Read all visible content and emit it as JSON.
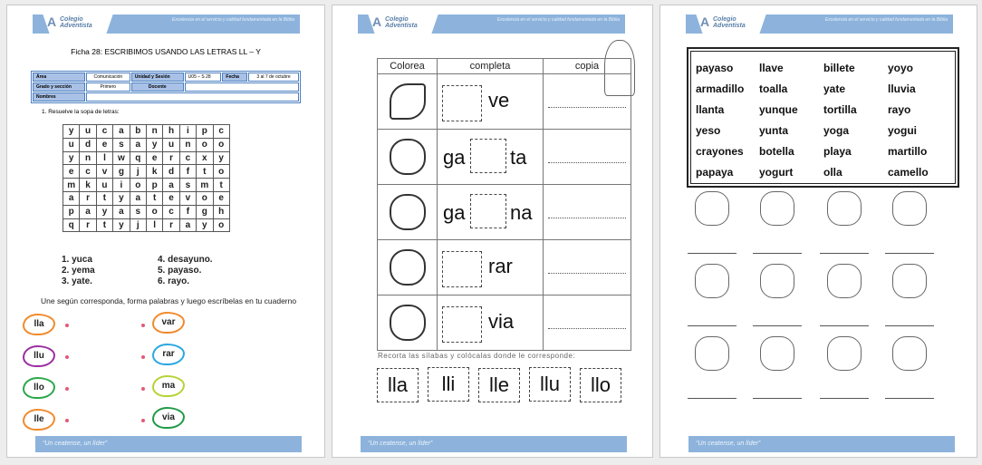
{
  "header": {
    "logo_line1": "Colegio",
    "logo_line2": "Adventista",
    "motto": "Excelencia en el servicio y calidad fundamentada en la Biblia"
  },
  "footer": "“Un ceatense, un líder”",
  "page1": {
    "title": "Ficha 28: ESCRIBIMOS USANDO LAS LETRAS LL – Y",
    "info": {
      "area_label": "Área",
      "area": "Comunicación",
      "unit_label": "Unidad y Sesión",
      "unit": "U05 – S 28",
      "date_label": "Fecha",
      "date": "3 al 7 de octubre",
      "grade_label": "Grado y sección",
      "grade": "Primero",
      "teacher_label": "Docente",
      "teacher": "",
      "name_label": "Nombres",
      "name": ""
    },
    "instruction1": "1.   Resuelve la sopa de letras:",
    "grid": [
      [
        "y",
        "u",
        "c",
        "a",
        "b",
        "n",
        "h",
        "i",
        "p",
        "c"
      ],
      [
        "u",
        "d",
        "e",
        "s",
        "a",
        "y",
        "u",
        "n",
        "o",
        "o"
      ],
      [
        "y",
        "n",
        "l",
        "w",
        "q",
        "e",
        "r",
        "c",
        "x",
        "y"
      ],
      [
        "e",
        "c",
        "v",
        "g",
        "j",
        "k",
        "d",
        "f",
        "t",
        "o"
      ],
      [
        "m",
        "k",
        "u",
        "i",
        "o",
        "p",
        "a",
        "s",
        "m",
        "t"
      ],
      [
        "a",
        "r",
        "t",
        "y",
        "a",
        "t",
        "e",
        "v",
        "o",
        "e"
      ],
      [
        "p",
        "a",
        "y",
        "a",
        "s",
        "o",
        "c",
        "f",
        "g",
        "h"
      ],
      [
        "q",
        "r",
        "t",
        "y",
        "j",
        "l",
        "r",
        "a",
        "y",
        "o"
      ]
    ],
    "words": [
      "1.   yuca",
      "2.   yema",
      "3.   yate.",
      "4.   desayuno.",
      "5.   payaso.",
      "6.   rayo."
    ],
    "instruction2": "Une según corresponda, forma palabras y luego escríbelas en tu cuaderno",
    "left_syllables": [
      {
        "t": "lla",
        "c": "#f08a2c"
      },
      {
        "t": "llu",
        "c": "#9b2fa0"
      },
      {
        "t": "llo",
        "c": "#2aa84a"
      },
      {
        "t": "lle",
        "c": "#f08a2c"
      }
    ],
    "right_syllables": [
      {
        "t": "var",
        "c": "#f08a2c"
      },
      {
        "t": "rar",
        "c": "#2aa7e0"
      },
      {
        "t": "ma",
        "c": "#b5d334"
      },
      {
        "t": "via",
        "c": "#1f9a46"
      }
    ]
  },
  "page2": {
    "headers": [
      "Colorea",
      "completa",
      "copia"
    ],
    "rows": [
      {
        "icon": "key-icon",
        "pre": "",
        "post": "ve"
      },
      {
        "icon": "cookie-icon",
        "pre": "ga",
        "post": "ta"
      },
      {
        "icon": "hen-icon",
        "pre": "ga",
        "post": "na"
      },
      {
        "icon": "crying-boy-icon",
        "pre": "",
        "post": "rar"
      },
      {
        "icon": "rain-cloud-icon",
        "pre": "",
        "post": "via"
      }
    ],
    "instruction": "Recorta las sílabas y colócalas donde le corresponde:",
    "cutouts": [
      "lla",
      "lli",
      "lle",
      "llu",
      "llo"
    ]
  },
  "page3": {
    "words": [
      [
        "payaso",
        "llave",
        "billete",
        "yoyo"
      ],
      [
        "armadillo",
        "toalla",
        "yate",
        "lluvia"
      ],
      [
        "llanta",
        "yunque",
        "tortilla",
        "rayo"
      ],
      [
        "yeso",
        "yunta",
        "yoga",
        "yogui"
      ],
      [
        "crayones",
        "botella",
        "playa",
        "martillo"
      ],
      [
        "papaya",
        "yogurt",
        "olla",
        "camello"
      ]
    ],
    "pictures": [
      [
        "yoyo-icon",
        "dog-icon",
        "papaya-icon",
        "egg-icon"
      ],
      [
        "anvil-icon",
        "yogurt-icon",
        "bag-icon",
        "clown-icon"
      ],
      [
        "island-icon",
        "bulls-icon",
        "lightning-icon",
        "radio-icon"
      ]
    ]
  }
}
